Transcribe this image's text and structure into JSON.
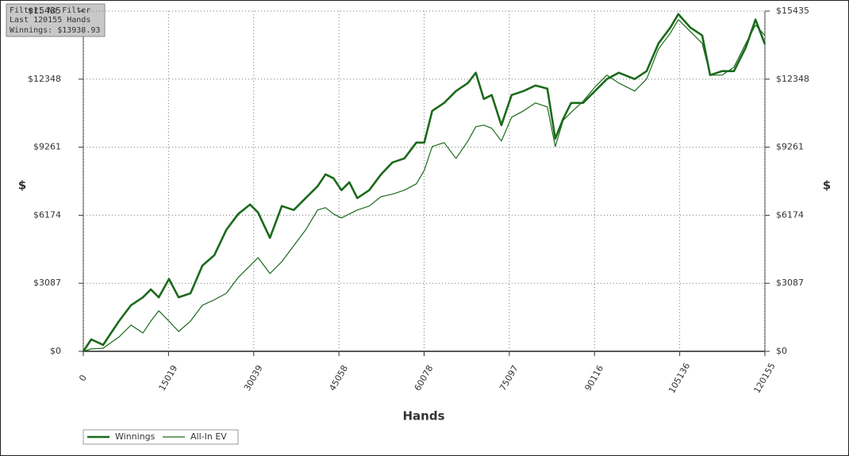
{
  "info": {
    "filter": "Filter: No Filter",
    "hands": "Last 120155 Hands",
    "winnings": "Winnings: $13938.93"
  },
  "chart_data": {
    "type": "line",
    "x_label": "Hands",
    "y_label": "$",
    "y2_label": "$",
    "x": [
      0,
      1400,
      3500,
      4900,
      6300,
      8400,
      10500,
      11900,
      13300,
      15100,
      16800,
      18900,
      21000,
      23100,
      25200,
      27300,
      29400,
      30800,
      32900,
      35000,
      37100,
      39200,
      41300,
      42700,
      44100,
      45500,
      46900,
      48300,
      50400,
      52500,
      54500,
      56600,
      58700,
      60100,
      61500,
      63600,
      65700,
      67800,
      69200,
      70600,
      72000,
      73700,
      75500,
      77600,
      79700,
      81800,
      83200,
      84600,
      86000,
      88100,
      90200,
      92300,
      94400,
      97200,
      99300,
      101400,
      103500,
      104900,
      107000,
      109100,
      110500,
      112600,
      114700,
      116800,
      118500,
      120155
    ],
    "series": [
      {
        "name": "Winnings",
        "color": "#1b6a1b",
        "values": [
          0,
          540,
          290,
          830,
          1370,
          2090,
          2450,
          2810,
          2450,
          3280,
          2450,
          2630,
          3890,
          4360,
          5510,
          6230,
          6660,
          6300,
          5150,
          6590,
          6410,
          6950,
          7490,
          8030,
          7850,
          7310,
          7670,
          6950,
          7310,
          8030,
          8570,
          8750,
          9470,
          9470,
          10910,
          11270,
          11810,
          12170,
          12640,
          11450,
          11630,
          10260,
          11630,
          11810,
          12060,
          11920,
          9650,
          10550,
          11270,
          11270,
          11810,
          12350,
          12640,
          12350,
          12710,
          13970,
          14690,
          15300,
          14690,
          14330,
          12530,
          12710,
          12710,
          13790,
          15050,
          13939
        ]
      },
      {
        "name": "All-In EV",
        "color": "#1b6a1b",
        "values": [
          0,
          110,
          140,
          400,
          650,
          1190,
          830,
          1370,
          1840,
          1370,
          900,
          1370,
          2090,
          2340,
          2630,
          3350,
          3890,
          4250,
          3530,
          4070,
          4790,
          5510,
          6410,
          6520,
          6230,
          6050,
          6230,
          6410,
          6590,
          7020,
          7130,
          7310,
          7600,
          8210,
          9290,
          9470,
          8750,
          9540,
          10190,
          10260,
          10120,
          9540,
          10620,
          10910,
          11270,
          11090,
          9290,
          10480,
          10840,
          11340,
          11990,
          12530,
          12170,
          11810,
          12350,
          13720,
          14440,
          15050,
          14510,
          13970,
          12530,
          12530,
          12890,
          13970,
          14800,
          14330
        ]
      }
    ],
    "xlim": [
      0,
      120155
    ],
    "xticks": [
      0,
      15019,
      30039,
      45058,
      60078,
      75097,
      90116,
      105136,
      120155
    ],
    "ylim": [
      0,
      15435
    ],
    "yticks": [
      {
        "value": 0,
        "label": "$0"
      },
      {
        "value": 3087,
        "label": "$3087"
      },
      {
        "value": 6174,
        "label": "$6174"
      },
      {
        "value": 9261,
        "label": "$9261"
      },
      {
        "value": 12348,
        "label": "$12348"
      },
      {
        "value": 15435,
        "label": "$15435"
      }
    ],
    "grid": true
  }
}
